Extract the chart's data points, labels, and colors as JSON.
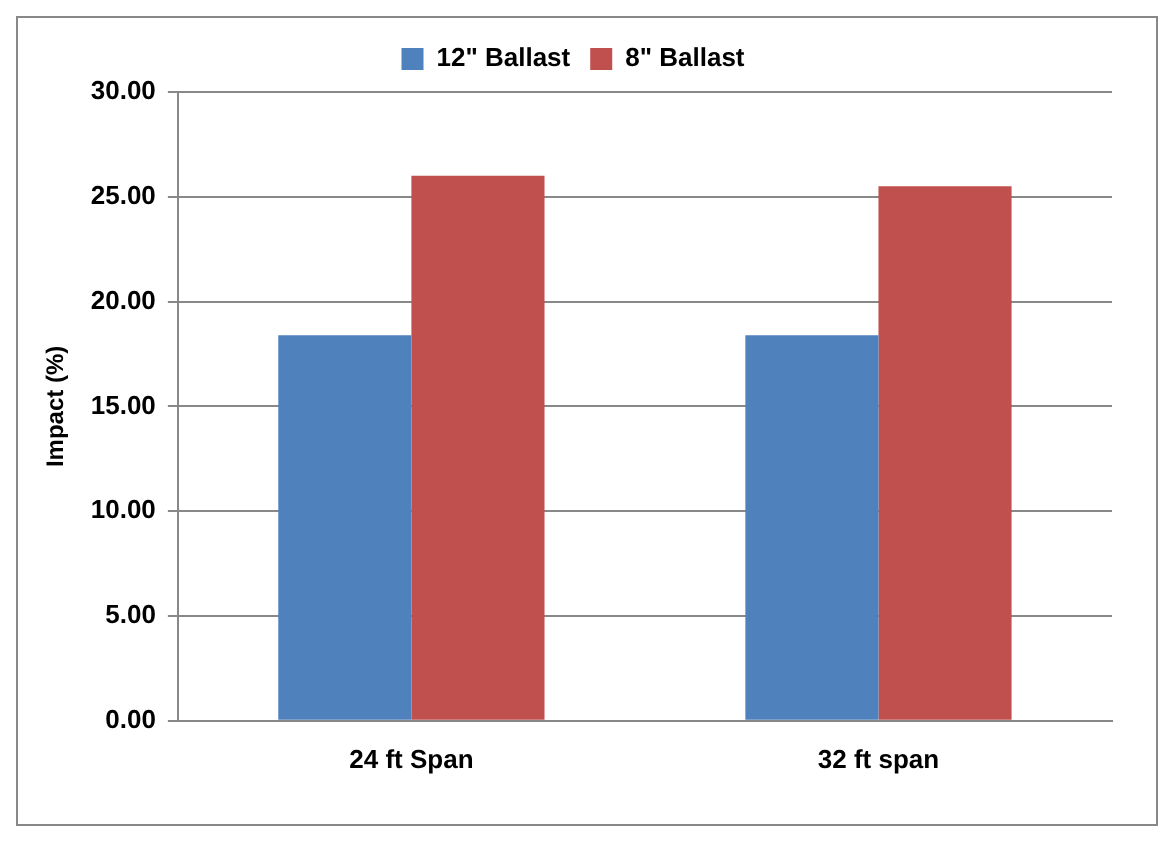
{
  "chart_data": {
    "type": "bar",
    "ylabel": "Impact (%)",
    "categories": [
      "24 ft Span",
      "32 ft span"
    ],
    "series": [
      {
        "name": "12\" Ballast",
        "color": "#4f81bd",
        "values": [
          18.4,
          18.4
        ]
      },
      {
        "name": "8\" Ballast",
        "color": "#c0504d",
        "values": [
          26.0,
          25.5
        ]
      }
    ],
    "ylim": [
      0,
      30
    ],
    "yticks": [
      {
        "value": 0,
        "label": "0.00"
      },
      {
        "value": 5,
        "label": "5.00"
      },
      {
        "value": 10,
        "label": "10.00"
      },
      {
        "value": 15,
        "label": "15.00"
      },
      {
        "value": 20,
        "label": "20.00"
      },
      {
        "value": 25,
        "label": "25.00"
      },
      {
        "value": 30,
        "label": "30.00"
      }
    ],
    "grid": "y",
    "legend": "top"
  }
}
